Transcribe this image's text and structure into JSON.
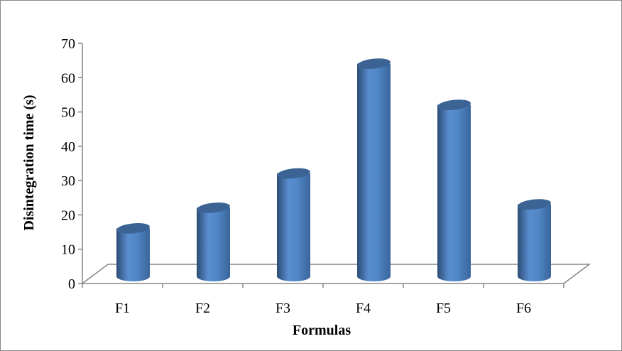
{
  "chart_data": {
    "type": "bar",
    "style": "3d-cylinder",
    "categories": [
      "F1",
      "F2",
      "F3",
      "F4",
      "F5",
      "F6"
    ],
    "values": [
      14,
      20,
      30,
      62,
      50,
      21
    ],
    "xlabel": "Formulas",
    "ylabel": "Disintegration time (s)",
    "ylim": [
      0,
      70
    ],
    "yticks": [
      0,
      10,
      20,
      30,
      40,
      50,
      60,
      70
    ],
    "grid": false,
    "legend": "none",
    "colors": {
      "bar": "#4f81bd",
      "bar_dark": "#2c4d75",
      "bar_top": "#3b6495",
      "axis": "#868686"
    }
  }
}
